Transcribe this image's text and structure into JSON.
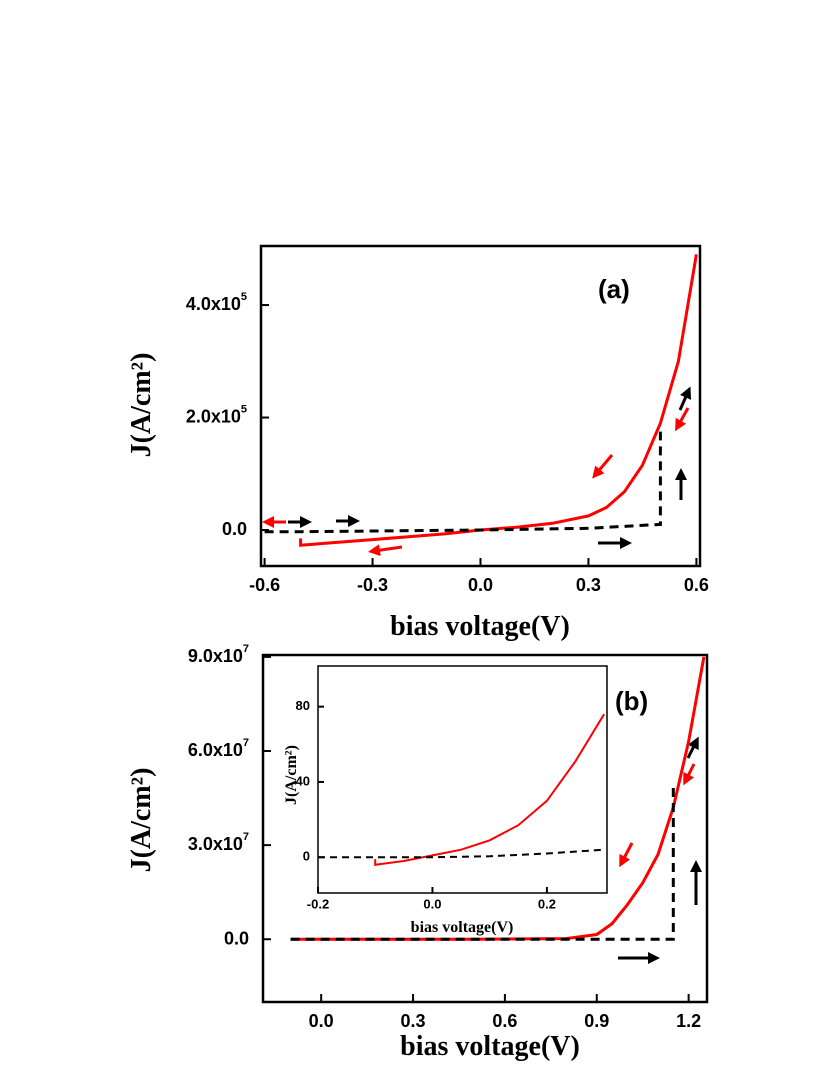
{
  "chart_data": [
    {
      "type": "line",
      "panel_label": "(a)",
      "xlabel": "bias voltage(V)",
      "ylabel": "J(A/cm²)",
      "xlim": [
        -0.61,
        0.61
      ],
      "xticks": [
        -0.6,
        -0.3,
        {
          "value": 0,
          "label": "0.0"
        },
        0.3,
        0.6
      ],
      "ylim": [
        -64000,
        505000
      ],
      "yticks": [
        {
          "value": 0,
          "label": "0.0"
        },
        {
          "value": 200000,
          "label": "2.0x10",
          "sup": "5"
        },
        {
          "value": 400000,
          "label": "4.0x10",
          "sup": "5"
        }
      ],
      "series": [
        {
          "color": "#ff0000",
          "linestyle": "solid",
          "x": [
            -0.5,
            -0.5,
            -0.4,
            -0.3,
            -0.2,
            -0.1,
            0,
            0.1,
            0.2,
            0.3,
            0.35,
            0.4,
            0.45,
            0.5,
            0.55,
            0.6
          ],
          "values": [
            -15000,
            -27000,
            -22000,
            -17000,
            -12000,
            -7000,
            0,
            5000,
            12000,
            25000,
            40000,
            68000,
            115000,
            190000,
            300000,
            490000
          ]
        },
        {
          "color": "#000000",
          "linestyle": "dashed",
          "x": [
            -0.6,
            -0.5,
            0,
            0.3,
            0.5,
            0.5
          ],
          "values": [
            -3000,
            -3000,
            0,
            3000,
            10000,
            175000
          ]
        }
      ]
    },
    {
      "type": "line",
      "panel_label": "(b)",
      "xlabel": "bias voltage(V)",
      "ylabel": "J(A/cm²)",
      "xlim": [
        -0.19,
        1.26
      ],
      "xticks": [
        {
          "value": 0,
          "label": "0.0"
        },
        0.3,
        0.6,
        0.9,
        1.2
      ],
      "ylim": [
        -20000000,
        90600000
      ],
      "yticks": [
        {
          "value": 0,
          "label": "0.0"
        },
        {
          "value": 30000000,
          "label": "3.0x10",
          "sup": "7"
        },
        {
          "value": 60000000,
          "label": "6.0x10",
          "sup": "7"
        },
        {
          "value": 90000000,
          "label": "9.0x10",
          "sup": "7"
        }
      ],
      "series": [
        {
          "color": "#ff0000",
          "linestyle": "solid",
          "x": [
            -0.1,
            0.5,
            0.8,
            0.9,
            0.95,
            1.0,
            1.05,
            1.1,
            1.15,
            1.2,
            1.25
          ],
          "values": [
            0,
            0,
            200000,
            1500000,
            5000000,
            11000000,
            18000000,
            27000000,
            42000000,
            63000000,
            90000000
          ]
        },
        {
          "color": "#000000",
          "linestyle": "dashed",
          "x": [
            -0.1,
            1.15,
            1.15
          ],
          "values": [
            0,
            0,
            50000000
          ]
        }
      ]
    },
    {
      "type": "line",
      "xlabel": "bias voltage(V)",
      "ylabel": "J(A/cm²)",
      "xlim": [
        -0.2,
        0.305
      ],
      "xticks": [
        -0.2,
        {
          "value": 0,
          "label": "0.0"
        },
        0.2
      ],
      "ylim": [
        -19,
        101.6
      ],
      "yticks": [
        0,
        40,
        80
      ],
      "series": [
        {
          "color": "#ff0000",
          "linestyle": "solid",
          "x": [
            -0.1,
            -0.1,
            -0.05,
            0,
            0.05,
            0.1,
            0.15,
            0.2,
            0.25,
            0.3
          ],
          "values": [
            -1,
            -4,
            -2,
            1,
            4,
            9,
            17,
            30,
            51,
            76
          ]
        },
        {
          "color": "#000000",
          "linestyle": "dashed",
          "x": [
            -0.2,
            0,
            0.1,
            0.2,
            0.3
          ],
          "values": [
            0,
            0,
            0.5,
            2,
            4
          ]
        }
      ]
    }
  ]
}
